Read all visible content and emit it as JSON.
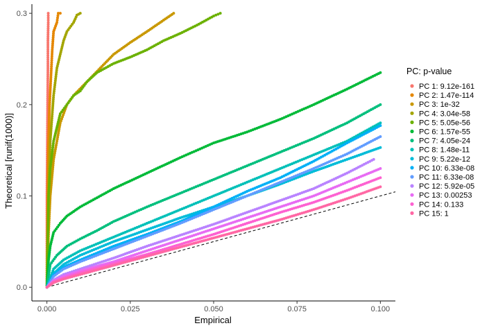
{
  "chart_data": {
    "type": "scatter",
    "xlabel": "Empirical",
    "ylabel": "Theoretical [runif(1000)]",
    "xlim": [
      -0.0045,
      0.1045
    ],
    "ylim": [
      -0.015,
      0.31
    ],
    "x_ticks": [
      0.0,
      0.025,
      0.05,
      0.075,
      0.1
    ],
    "x_tick_labels": [
      "0.000",
      "0.025",
      "0.050",
      "0.075",
      "0.100"
    ],
    "y_ticks": [
      0.0,
      0.1,
      0.2,
      0.3
    ],
    "y_tick_labels": [
      "0.0",
      "0.1",
      "0.2",
      "0.3"
    ],
    "grid": false,
    "legend_title": "PC: p-value",
    "legend_position": "right",
    "reference_line": {
      "type": "diagonal",
      "style": "dashed",
      "slope": 1,
      "intercept": 0
    },
    "series": [
      {
        "name": "PC 1: 9.12e-161",
        "color": "#F8766D",
        "x": [
          0,
          0,
          0,
          0.0001,
          0.0002,
          0.0003,
          0.0003,
          0.0004,
          0.0004
        ],
        "y": [
          0,
          0.05,
          0.1,
          0.15,
          0.2,
          0.24,
          0.27,
          0.29,
          0.3
        ]
      },
      {
        "name": "PC 2: 1.47e-114",
        "color": "#E58700",
        "x": [
          0,
          0.0002,
          0.0004,
          0.0008,
          0.0012,
          0.0016,
          0.002,
          0.003,
          0.0034,
          0.004
        ],
        "y": [
          0,
          0.08,
          0.15,
          0.2,
          0.23,
          0.26,
          0.28,
          0.29,
          0.3,
          0.3
        ]
      },
      {
        "name": "PC 3: 1e-32",
        "color": "#C99800",
        "x": [
          0,
          0.0005,
          0.001,
          0.002,
          0.004,
          0.006,
          0.008,
          0.012,
          0.016,
          0.02,
          0.025,
          0.03,
          0.034,
          0.038
        ],
        "y": [
          0,
          0.06,
          0.1,
          0.14,
          0.18,
          0.2,
          0.21,
          0.225,
          0.24,
          0.255,
          0.268,
          0.28,
          0.29,
          0.3
        ]
      },
      {
        "name": "PC 4: 3.04e-58",
        "color": "#A3A500",
        "x": [
          0,
          0.0005,
          0.001,
          0.002,
          0.003,
          0.004,
          0.005,
          0.006,
          0.008,
          0.009,
          0.01
        ],
        "y": [
          0,
          0.1,
          0.16,
          0.21,
          0.24,
          0.255,
          0.27,
          0.28,
          0.29,
          0.298,
          0.3
        ]
      },
      {
        "name": "PC 5: 5.05e-56",
        "color": "#6BB100",
        "x": [
          0,
          0.0005,
          0.001,
          0.002,
          0.003,
          0.004,
          0.006,
          0.008,
          0.01,
          0.012,
          0.015,
          0.02,
          0.025,
          0.03,
          0.035,
          0.04,
          0.045,
          0.05,
          0.052
        ],
        "y": [
          0,
          0.1,
          0.13,
          0.16,
          0.175,
          0.19,
          0.2,
          0.21,
          0.215,
          0.225,
          0.235,
          0.245,
          0.252,
          0.26,
          0.27,
          0.278,
          0.287,
          0.297,
          0.3
        ]
      },
      {
        "name": "PC 6: 1.57e-55",
        "color": "#00BA38",
        "x": [
          0,
          0.0005,
          0.001,
          0.002,
          0.004,
          0.006,
          0.01,
          0.015,
          0.02,
          0.03,
          0.04,
          0.05,
          0.06,
          0.07,
          0.08,
          0.09,
          0.1
        ],
        "y": [
          0,
          0.03,
          0.045,
          0.06,
          0.07,
          0.078,
          0.088,
          0.098,
          0.108,
          0.125,
          0.142,
          0.158,
          0.17,
          0.184,
          0.2,
          0.217,
          0.235
        ]
      },
      {
        "name": "PC 7: 4.05e-24",
        "color": "#00BF7D",
        "x": [
          0,
          0.001,
          0.003,
          0.006,
          0.01,
          0.015,
          0.02,
          0.03,
          0.04,
          0.05,
          0.06,
          0.07,
          0.08,
          0.09,
          0.1
        ],
        "y": [
          0,
          0.025,
          0.035,
          0.045,
          0.053,
          0.062,
          0.072,
          0.088,
          0.103,
          0.118,
          0.133,
          0.148,
          0.163,
          0.18,
          0.2
        ]
      },
      {
        "name": "PC 8: 1.48e-11",
        "color": "#00C0B8",
        "x": [
          0,
          0.002,
          0.005,
          0.01,
          0.02,
          0.03,
          0.04,
          0.05,
          0.06,
          0.07,
          0.08,
          0.09,
          0.1
        ],
        "y": [
          0,
          0.02,
          0.03,
          0.04,
          0.055,
          0.07,
          0.085,
          0.1,
          0.115,
          0.13,
          0.145,
          0.16,
          0.18
        ]
      },
      {
        "name": "PC 9: 5.22e-12",
        "color": "#00BCD8",
        "x": [
          0,
          0.002,
          0.005,
          0.01,
          0.02,
          0.03,
          0.04,
          0.05,
          0.06,
          0.07,
          0.08,
          0.09,
          0.1
        ],
        "y": [
          0,
          0.015,
          0.025,
          0.035,
          0.05,
          0.063,
          0.076,
          0.088,
          0.1,
          0.113,
          0.127,
          0.14,
          0.153
        ]
      },
      {
        "name": "PC 10: 6.33e-08",
        "color": "#00B0F6",
        "x": [
          0,
          0.002,
          0.005,
          0.01,
          0.02,
          0.03,
          0.04,
          0.05,
          0.06,
          0.07,
          0.08,
          0.09,
          0.1
        ],
        "y": [
          0,
          0.014,
          0.022,
          0.03,
          0.045,
          0.058,
          0.072,
          0.088,
          0.105,
          0.12,
          0.138,
          0.158,
          0.177
        ]
      },
      {
        "name": "PC 11: 6.33e-08",
        "color": "#619CFF",
        "x": [
          0,
          0.002,
          0.005,
          0.01,
          0.02,
          0.03,
          0.04,
          0.05,
          0.06,
          0.07,
          0.08,
          0.09,
          0.1
        ],
        "y": [
          0,
          0.012,
          0.02,
          0.028,
          0.042,
          0.056,
          0.07,
          0.085,
          0.1,
          0.115,
          0.13,
          0.146,
          0.165
        ]
      },
      {
        "name": "PC 12: 5.92e-05",
        "color": "#B983FF",
        "x": [
          0,
          0.002,
          0.005,
          0.01,
          0.02,
          0.03,
          0.04,
          0.05,
          0.06,
          0.07,
          0.08,
          0.09,
          0.098
        ],
        "y": [
          0,
          0.008,
          0.014,
          0.02,
          0.032,
          0.045,
          0.057,
          0.069,
          0.082,
          0.095,
          0.108,
          0.125,
          0.14
        ]
      },
      {
        "name": "PC 13: 0.00253",
        "color": "#E76BF3",
        "x": [
          0,
          0.002,
          0.005,
          0.01,
          0.02,
          0.03,
          0.04,
          0.05,
          0.06,
          0.07,
          0.08,
          0.09,
          0.1
        ],
        "y": [
          0,
          0.007,
          0.012,
          0.018,
          0.028,
          0.04,
          0.052,
          0.064,
          0.076,
          0.088,
          0.1,
          0.115,
          0.13
        ]
      },
      {
        "name": "PC 14: 0.133",
        "color": "#FD61D1",
        "x": [
          0,
          0.002,
          0.005,
          0.01,
          0.02,
          0.03,
          0.04,
          0.05,
          0.06,
          0.07,
          0.08,
          0.09,
          0.1
        ],
        "y": [
          0,
          0.006,
          0.01,
          0.016,
          0.026,
          0.036,
          0.047,
          0.058,
          0.07,
          0.082,
          0.093,
          0.106,
          0.12
        ]
      },
      {
        "name": "PC 15: 1",
        "color": "#FF67A4",
        "x": [
          0,
          0.002,
          0.005,
          0.01,
          0.02,
          0.03,
          0.04,
          0.05,
          0.06,
          0.07,
          0.08,
          0.09,
          0.1
        ],
        "y": [
          0,
          0.005,
          0.009,
          0.014,
          0.024,
          0.034,
          0.044,
          0.054,
          0.064,
          0.074,
          0.085,
          0.097,
          0.11
        ]
      }
    ]
  }
}
